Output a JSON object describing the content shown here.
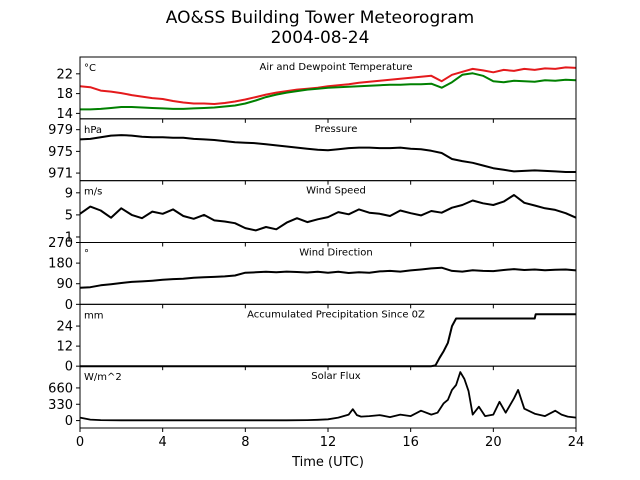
{
  "title_line1": "AO&SS Building Tower Meteorogram",
  "title_line2": "2004-08-24",
  "chart_data": {
    "type": "line",
    "xlabel": "Time (UTC)",
    "xlim": [
      0,
      24
    ],
    "x_ticks": [
      0,
      4,
      8,
      12,
      16,
      20,
      24
    ],
    "panels": [
      {
        "title": "Air and Dewpoint Temperature",
        "unit": "°C",
        "ylim": [
          12.9,
          25.4
        ],
        "y_ticks": [
          14,
          18,
          22
        ],
        "series": [
          {
            "color": "#e41a1c",
            "x": [
              0,
              0.5,
              1,
              1.5,
              2,
              2.5,
              3,
              3.5,
              4,
              4.5,
              5,
              5.5,
              6,
              6.5,
              7,
              7.5,
              8,
              8.5,
              9,
              9.5,
              10,
              10.5,
              11,
              11.5,
              12,
              12.5,
              13,
              13.5,
              14,
              14.5,
              15,
              15.5,
              16,
              16.5,
              17,
              17.5,
              18,
              18.5,
              19,
              19.5,
              20,
              20.5,
              21,
              21.5,
              22,
              22.5,
              23,
              23.5,
              24
            ],
            "y": [
              19.5,
              19.3,
              18.6,
              18.4,
              18.1,
              17.7,
              17.4,
              17.1,
              16.9,
              16.5,
              16.2,
              16.0,
              16.0,
              15.9,
              16.1,
              16.4,
              16.8,
              17.3,
              17.8,
              18.2,
              18.5,
              18.8,
              19.0,
              19.2,
              19.5,
              19.7,
              19.9,
              20.2,
              20.4,
              20.6,
              20.8,
              21.0,
              21.2,
              21.4,
              21.6,
              20.5,
              21.8,
              22.4,
              23.0,
              22.7,
              22.3,
              22.8,
              22.6,
              23.0,
              22.8,
              23.1,
              23.0,
              23.3,
              23.2
            ]
          },
          {
            "color": "#008000",
            "x": [
              0,
              0.5,
              1,
              1.5,
              2,
              2.5,
              3,
              3.5,
              4,
              4.5,
              5,
              5.5,
              6,
              6.5,
              7,
              7.5,
              8,
              8.5,
              9,
              9.5,
              10,
              10.5,
              11,
              11.5,
              12,
              12.5,
              13,
              13.5,
              14,
              14.5,
              15,
              15.5,
              16,
              16.5,
              17,
              17.5,
              18,
              18.5,
              19,
              19.5,
              20,
              20.5,
              21,
              21.5,
              22,
              22.5,
              23,
              23.5,
              24
            ],
            "y": [
              14.8,
              14.8,
              14.9,
              15.1,
              15.3,
              15.3,
              15.2,
              15.1,
              15.0,
              14.9,
              14.9,
              15.0,
              15.1,
              15.2,
              15.4,
              15.6,
              16.0,
              16.6,
              17.3,
              17.8,
              18.2,
              18.5,
              18.8,
              19.0,
              19.2,
              19.3,
              19.4,
              19.5,
              19.6,
              19.7,
              19.8,
              19.8,
              19.9,
              19.9,
              20.0,
              19.2,
              20.3,
              21.8,
              22.1,
              21.6,
              20.5,
              20.3,
              20.6,
              20.5,
              20.4,
              20.7,
              20.6,
              20.8,
              20.7
            ]
          }
        ]
      },
      {
        "title": "Pressure",
        "unit": "hPa",
        "ylim": [
          969.6,
          981.0
        ],
        "y_ticks": [
          971,
          975,
          979
        ],
        "series": [
          {
            "color": "#000000",
            "x": [
              0,
              0.5,
              1,
              1.5,
              2,
              2.5,
              3,
              3.5,
              4,
              4.5,
              5,
              5.5,
              6,
              6.5,
              7,
              7.5,
              8,
              8.5,
              9,
              9.5,
              10,
              10.5,
              11,
              11.5,
              12,
              12.5,
              13,
              13.5,
              14,
              14.5,
              15,
              15.5,
              16,
              16.5,
              17,
              17.5,
              18,
              18.5,
              19,
              19.5,
              20,
              20.5,
              21,
              21.5,
              22,
              22.5,
              23,
              23.5,
              24
            ],
            "y": [
              977.2,
              977.3,
              977.6,
              977.9,
              978.0,
              977.9,
              977.7,
              977.6,
              977.6,
              977.5,
              977.5,
              977.3,
              977.2,
              977.1,
              976.9,
              976.7,
              976.6,
              976.5,
              976.3,
              976.1,
              975.9,
              975.7,
              975.5,
              975.3,
              975.2,
              975.4,
              975.6,
              975.7,
              975.7,
              975.6,
              975.6,
              975.7,
              975.5,
              975.4,
              975.1,
              974.7,
              973.6,
              973.2,
              972.9,
              972.4,
              971.9,
              971.6,
              971.3,
              971.4,
              971.5,
              971.4,
              971.3,
              971.2,
              971.2
            ]
          }
        ]
      },
      {
        "title": "Wind Speed",
        "unit": "m/s",
        "ylim": [
          0.0,
          11.2
        ],
        "y_ticks": [
          1,
          5,
          9
        ],
        "series": [
          {
            "color": "#000000",
            "x": [
              0,
              0.5,
              1,
              1.5,
              2,
              2.5,
              3,
              3.5,
              4,
              4.5,
              5,
              5.5,
              6,
              6.5,
              7,
              7.5,
              8,
              8.5,
              9,
              9.5,
              10,
              10.5,
              11,
              11.5,
              12,
              12.5,
              13,
              13.5,
              14,
              14.5,
              15,
              15.5,
              16,
              16.5,
              17,
              17.5,
              18,
              18.5,
              19,
              19.5,
              20,
              20.5,
              21,
              21.5,
              22,
              22.5,
              23,
              23.5,
              24
            ],
            "y": [
              5.2,
              6.5,
              5.8,
              4.5,
              6.2,
              5.0,
              4.4,
              5.6,
              5.2,
              6.0,
              4.8,
              4.3,
              5.0,
              4.0,
              3.8,
              3.5,
              2.6,
              2.2,
              2.8,
              2.4,
              3.6,
              4.4,
              3.7,
              4.2,
              4.6,
              5.5,
              5.1,
              6.0,
              5.4,
              5.2,
              4.8,
              5.8,
              5.3,
              4.9,
              5.7,
              5.4,
              6.3,
              6.8,
              7.6,
              7.1,
              6.8,
              7.4,
              8.6,
              7.2,
              6.7,
              6.2,
              5.9,
              5.3,
              4.5
            ]
          }
        ]
      },
      {
        "title": "Wind Direction",
        "unit": "°",
        "ylim": [
          0,
          270
        ],
        "y_ticks": [
          0,
          90,
          180,
          270
        ],
        "series": [
          {
            "color": "#000000",
            "x": [
              0,
              0.5,
              1,
              1.5,
              2,
              2.5,
              3,
              3.5,
              4,
              4.5,
              5,
              5.5,
              6,
              6.5,
              7,
              7.5,
              8,
              8.5,
              9,
              9.5,
              10,
              10.5,
              11,
              11.5,
              12,
              12.5,
              13,
              13.5,
              14,
              14.5,
              15,
              15.5,
              16,
              16.5,
              17,
              17.5,
              18,
              18.5,
              19,
              19.5,
              20,
              20.5,
              21,
              21.5,
              22,
              22.5,
              23,
              23.5,
              24
            ],
            "y": [
              72,
              75,
              83,
              88,
              93,
              98,
              100,
              103,
              107,
              110,
              112,
              116,
              118,
              120,
              122,
              126,
              138,
              140,
              142,
              140,
              143,
              141,
              139,
              142,
              138,
              142,
              137,
              140,
              138,
              144,
              146,
              143,
              148,
              152,
              157,
              160,
              146,
              143,
              149,
              146,
              145,
              150,
              154,
              150,
              152,
              149,
              151,
              152,
              148
            ]
          }
        ]
      },
      {
        "title": "Accumulated Precipitation Since 0Z",
        "unit": "mm",
        "ylim": [
          0,
          37
        ],
        "y_ticks": [
          0,
          12,
          24
        ],
        "series": [
          {
            "color": "#000000",
            "x": [
              0,
              17,
              17.2,
              17.4,
              17.6,
              17.8,
              18.0,
              18.2,
              19,
              20,
              21,
              22,
              22.05,
              23,
              24
            ],
            "y": [
              0,
              0,
              0.5,
              5,
              9,
              14,
              24,
              28.5,
              28.5,
              28.5,
              28.5,
              28.5,
              31.1,
              31.1,
              31.1
            ]
          }
        ]
      },
      {
        "title": "Solar Flux",
        "unit": "W/m^2",
        "ylim": [
          -150,
          1100
        ],
        "y_ticks": [
          0,
          330,
          660
        ],
        "series": [
          {
            "color": "#000000",
            "x": [
              0,
              0.5,
              1,
              2,
              4,
              6,
              8,
              10,
              11,
              11.5,
              12,
              12.5,
              13,
              13.2,
              13.4,
              13.6,
              14,
              14.5,
              15,
              15.5,
              16,
              16.5,
              17,
              17.3,
              17.6,
              17.8,
              18,
              18.2,
              18.4,
              18.6,
              18.8,
              19,
              19.3,
              19.6,
              20,
              20.3,
              20.6,
              21,
              21.2,
              21.5,
              22,
              22.5,
              23,
              23.3,
              23.6,
              24
            ],
            "y": [
              60,
              20,
              10,
              5,
              5,
              5,
              5,
              5,
              10,
              15,
              25,
              60,
              120,
              230,
              110,
              80,
              90,
              110,
              70,
              120,
              90,
              200,
              120,
              160,
              350,
              420,
              620,
              720,
              980,
              840,
              600,
              120,
              280,
              90,
              120,
              380,
              160,
              450,
              620,
              240,
              140,
              90,
              200,
              120,
              80,
              60
            ]
          }
        ]
      }
    ]
  }
}
